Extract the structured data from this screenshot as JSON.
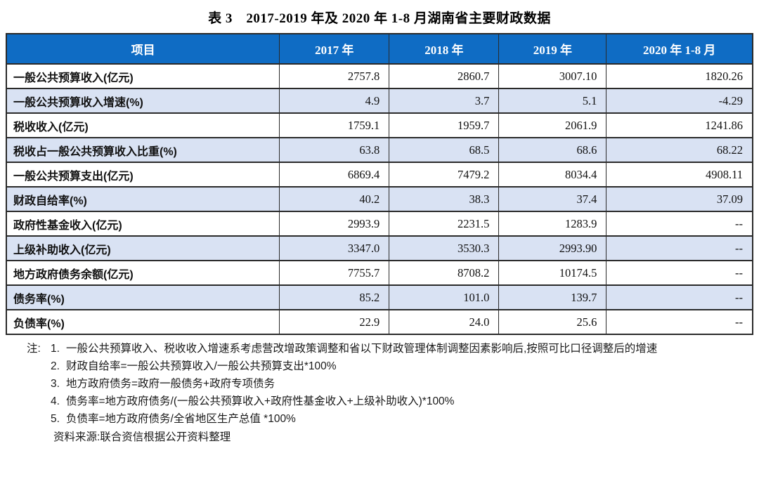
{
  "page": {
    "title": "表 3　2017-2019 年及 2020 年 1-8 月湖南省主要财政数据"
  },
  "table": {
    "header": [
      "项目",
      "2017 年",
      "2018 年",
      "2019 年",
      "2020 年 1-8 月"
    ],
    "rows": [
      {
        "label": "一般公共预算收入(亿元)",
        "values": [
          "2757.8",
          "2860.7",
          "3007.10",
          "1820.26"
        ]
      },
      {
        "label": "一般公共预算收入增速(%)",
        "values": [
          "4.9",
          "3.7",
          "5.1",
          "-4.29"
        ]
      },
      {
        "label": "税收收入(亿元)",
        "values": [
          "1759.1",
          "1959.7",
          "2061.9",
          "1241.86"
        ]
      },
      {
        "label": "税收占一般公共预算收入比重(%)",
        "values": [
          "63.8",
          "68.5",
          "68.6",
          "68.22"
        ]
      },
      {
        "label": "一般公共预算支出(亿元)",
        "values": [
          "6869.4",
          "7479.2",
          "8034.4",
          "4908.11"
        ]
      },
      {
        "label": "财政自给率(%)",
        "values": [
          "40.2",
          "38.3",
          "37.4",
          "37.09"
        ]
      },
      {
        "label": "政府性基金收入(亿元)",
        "values": [
          "2993.9",
          "2231.5",
          "1283.9",
          "--"
        ]
      },
      {
        "label": "上级补助收入(亿元)",
        "values": [
          "3347.0",
          "3530.3",
          "2993.90",
          "--"
        ]
      },
      {
        "label": "地方政府债务余额(亿元)",
        "values": [
          "7755.7",
          "8708.2",
          "10174.5",
          "--"
        ]
      },
      {
        "label": "债务率(%)",
        "values": [
          "85.2",
          "101.0",
          "139.7",
          "--"
        ]
      },
      {
        "label": "负债率(%)",
        "values": [
          "22.9",
          "24.0",
          "25.6",
          "--"
        ]
      }
    ],
    "col_widths_pct": [
      36.6,
      14.7,
      14.7,
      14.4,
      19.6
    ],
    "colors": {
      "header_bg": "#0f6cc4",
      "header_text": "#ffffff",
      "row_alt_bg": "#d9e2f3",
      "border": "#2a2a2a"
    }
  },
  "notes": {
    "label": "注:",
    "items": [
      {
        "num": "1.",
        "text": "一般公共预算收入、税收收入增速系考虑营改增政策调整和省以下财政管理体制调整因素影响后,按照可比口径调整后的增速"
      },
      {
        "num": "2.",
        "text": "财政自给率=一般公共预算收入/一般公共预算支出*100%"
      },
      {
        "num": "3.",
        "text": "地方政府债务=政府一般债务+政府专项债务"
      },
      {
        "num": "4.",
        "text": "债务率=地方政府债务/(一般公共预算收入+政府性基金收入+上级补助收入)*100%"
      },
      {
        "num": "5.",
        "text": "负债率=地方政府债务/全省地区生产总值 *100%"
      }
    ],
    "source": "资料来源:联合资信根据公开资料整理"
  }
}
